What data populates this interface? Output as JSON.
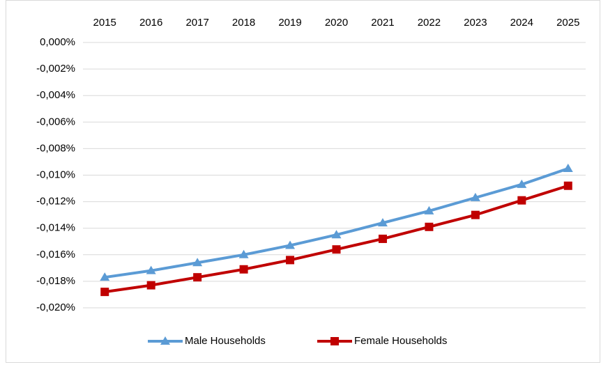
{
  "chart_data": {
    "type": "line",
    "categories": [
      "2015",
      "2016",
      "2017",
      "2018",
      "2019",
      "2020",
      "2021",
      "2022",
      "2023",
      "2024",
      "2025"
    ],
    "series": [
      {
        "name": "Male Households",
        "color": "#5b9bd5",
        "marker": "triangle",
        "values": [
          -0.0177,
          -0.0172,
          -0.0166,
          -0.016,
          -0.0153,
          -0.0145,
          -0.0136,
          -0.0127,
          -0.0117,
          -0.0107,
          -0.0095
        ]
      },
      {
        "name": "Female Households",
        "color": "#c00000",
        "marker": "square",
        "values": [
          -0.0188,
          -0.0183,
          -0.0177,
          -0.0171,
          -0.0164,
          -0.0156,
          -0.0148,
          -0.0139,
          -0.013,
          -0.0119,
          -0.0108
        ]
      }
    ],
    "ylim": [
      -0.02,
      0
    ],
    "yticks": [
      {
        "value": 0,
        "label": "0,000%"
      },
      {
        "value": -0.002,
        "label": "-0,002%"
      },
      {
        "value": -0.004,
        "label": "-0,004%"
      },
      {
        "value": -0.006,
        "label": "-0,006%"
      },
      {
        "value": -0.008,
        "label": "-0,008%"
      },
      {
        "value": -0.01,
        "label": "-0,010%"
      },
      {
        "value": -0.012,
        "label": "-0,012%"
      },
      {
        "value": -0.014,
        "label": "-0,014%"
      },
      {
        "value": -0.016,
        "label": "-0,016%"
      },
      {
        "value": -0.018,
        "label": "-0,018%"
      },
      {
        "value": -0.02,
        "label": "-0,020%"
      }
    ],
    "grid": true,
    "legend": "bottom"
  }
}
